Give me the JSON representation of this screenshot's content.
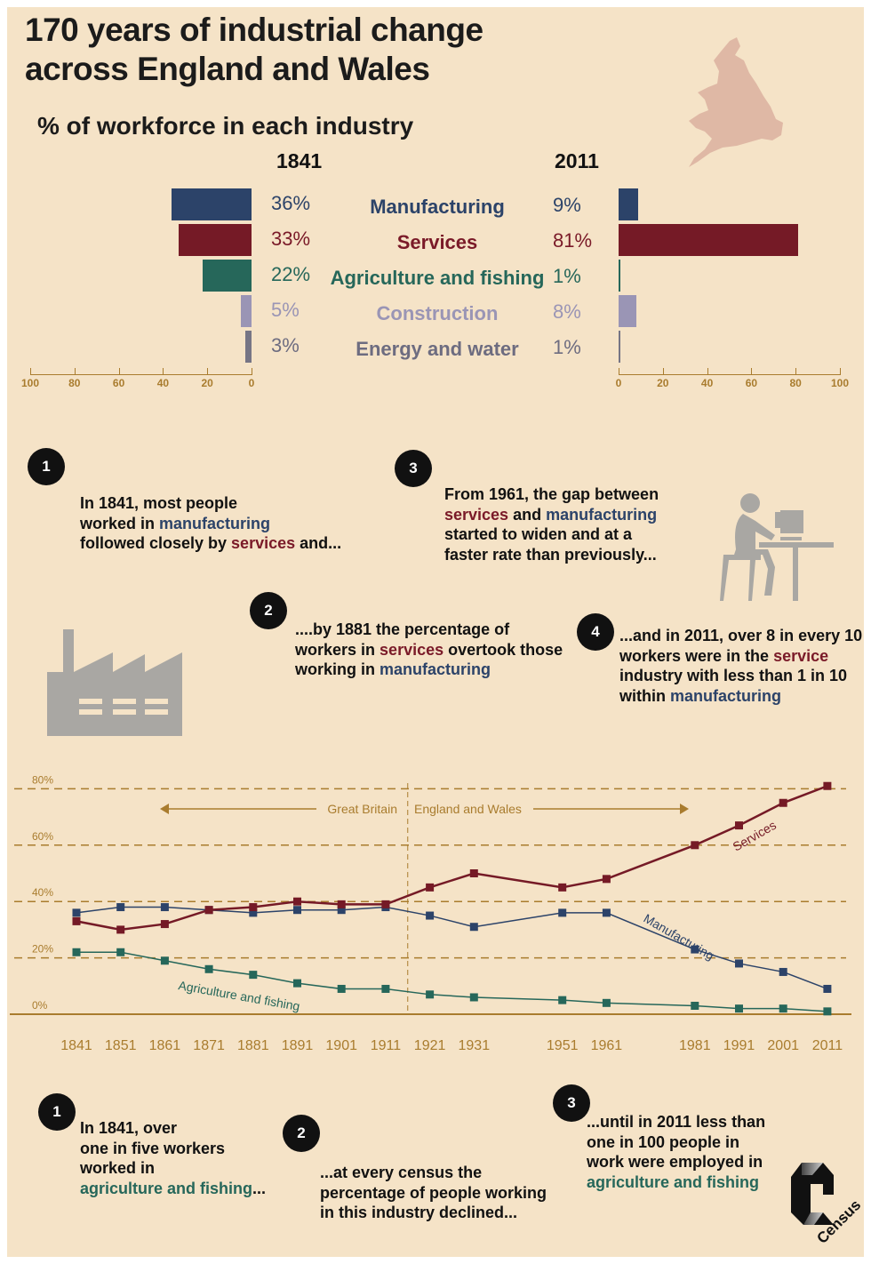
{
  "title_lines": [
    "170 years of industrial change",
    "across England and Wales"
  ],
  "subtitle": "% of workforce in each industry",
  "colors": {
    "manufacturing": "#2c4369",
    "services": "#751a26",
    "agriculture": "#26675a",
    "construction": "#9a95b5",
    "energy": "#767585",
    "axis": "#a97c2e",
    "background": "#f5e3c7"
  },
  "chart_data": [
    {
      "type": "bar",
      "orientation": "horizontal-butterfly",
      "categories": [
        "Manufacturing",
        "Services",
        "Agriculture and fishing",
        "Construction",
        "Energy and water"
      ],
      "series": [
        {
          "name": "1841",
          "values": [
            36,
            33,
            22,
            5,
            3
          ],
          "labels": [
            "36%",
            "33%",
            "22%",
            "5%",
            "3%"
          ]
        },
        {
          "name": "2011",
          "values": [
            9,
            81,
            1,
            8,
            1
          ],
          "labels": [
            "9%",
            "81%",
            "1%",
            "8%",
            "1%"
          ]
        }
      ],
      "xlim": [
        0,
        100
      ],
      "ticks": [
        "100",
        "80",
        "60",
        "40",
        "20",
        "0"
      ],
      "ticks_right": [
        "0",
        "20",
        "40",
        "60",
        "80",
        "100"
      ]
    },
    {
      "type": "line",
      "x": [
        1841,
        1851,
        1861,
        1871,
        1881,
        1891,
        1901,
        1911,
        1921,
        1931,
        1951,
        1961,
        1981,
        1991,
        2001,
        2011
      ],
      "x_ticks": [
        "1841",
        "1851",
        "1861",
        "1871",
        "1881",
        "1891",
        "1901",
        "1911",
        "1921",
        "1931",
        "1951",
        "1961",
        "1981",
        "1991",
        "2001",
        "2011"
      ],
      "y_ticks": [
        "0%",
        "20%",
        "40%",
        "60%",
        "80%"
      ],
      "ylim": [
        0,
        80
      ],
      "grid": "dashed horizontal",
      "series": [
        {
          "name": "Services",
          "color": "#751a26",
          "values": [
            33,
            30,
            32,
            37,
            38,
            40,
            39,
            39,
            45,
            50,
            45,
            48,
            60,
            67,
            75,
            81
          ]
        },
        {
          "name": "Manufacturing",
          "color": "#2c4369",
          "values": [
            36,
            38,
            38,
            37,
            36,
            37,
            37,
            38,
            35,
            31,
            36,
            36,
            23,
            18,
            15,
            9
          ]
        },
        {
          "name": "Agriculture and fishing",
          "color": "#26675a",
          "values": [
            22,
            22,
            19,
            16,
            14,
            11,
            9,
            9,
            7,
            6,
            5,
            4,
            3,
            2,
            2,
            1
          ]
        }
      ],
      "divider_year": 1916,
      "region_labels": {
        "left": "Great Britain",
        "right": "England and Wales"
      }
    }
  ],
  "notes_top": {
    "n1": {
      "num": "1",
      "l1": "In 1841, most people",
      "l2a": "worked in ",
      "l2b": "manufacturing",
      "l3a": "followed closely by ",
      "l3b": "services",
      "l3c": " and..."
    },
    "n2": {
      "num": "2",
      "l1": "....by 1881 the percentage of",
      "l2a": "workers in ",
      "l2b": "services",
      "l2c": " overtook those",
      "l3a": "working in ",
      "l3b": "manufacturing"
    },
    "n3": {
      "num": "3",
      "l1": "From 1961, the gap between",
      "l2a": "services",
      "l2b": " and ",
      "l2c": "manufacturing",
      "l3": "started to widen and at a",
      "l4": "faster rate than previously..."
    },
    "n4": {
      "num": "4",
      "l1": "...and in 2011, over 8 in every 10",
      "l2a": "workers were in the ",
      "l2b": "service",
      "l3": "industry with less than 1 in 10",
      "l4a": "within ",
      "l4b": "manufacturing"
    }
  },
  "notes_bottom": {
    "n1": {
      "num": "1",
      "l1": "In 1841, over",
      "l2": "one in five workers",
      "l3": "worked in",
      "l4": "agriculture and fishing",
      "l4b": "..."
    },
    "n2": {
      "num": "2",
      "l1": "...at every census the",
      "l2": "percentage of people working",
      "l3": "in this industry declined..."
    },
    "n3": {
      "num": "3",
      "l1": "...until in 2011 less than",
      "l2": "one in 100 people in",
      "l3": "work were employed in",
      "l4": "agriculture and fishing"
    }
  },
  "logo": {
    "text": "Census"
  },
  "icons": [
    "england-wales-map-icon",
    "factory-icon",
    "office-worker-icon",
    "census-logo"
  ]
}
